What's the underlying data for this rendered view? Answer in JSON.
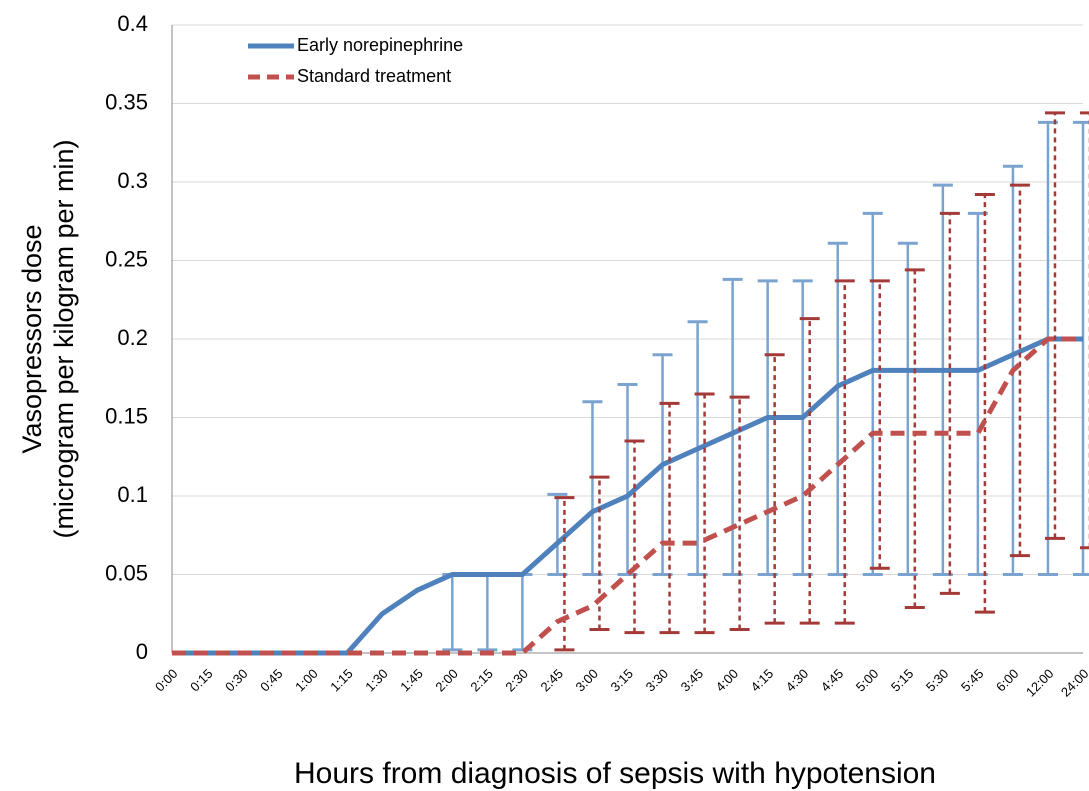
{
  "chart_data": {
    "type": "line",
    "y_label": [
      "Vasopressors dose",
      "(microgram per kilogram per min)"
    ],
    "x_label": "Hours from diagnosis of sepsis with hypotension",
    "categories": [
      "0:00",
      "0:15",
      "0:30",
      "0:45",
      "1:00",
      "1:15",
      "1:30",
      "1:45",
      "2:00",
      "2:15",
      "2:30",
      "2:45",
      "3:00",
      "3:15",
      "3:30",
      "3:45",
      "4:00",
      "4:15",
      "4:30",
      "4:45",
      "5:00",
      "5:15",
      "5:30",
      "5:45",
      "6:00",
      "12:00",
      "24:00"
    ],
    "ylim": [
      0,
      0.4
    ],
    "yticks": [
      0,
      0.05,
      0.1,
      0.15,
      0.2,
      0.25,
      0.3,
      0.35,
      0.4
    ],
    "grid": true,
    "legend": "top-left",
    "series": [
      {
        "name": "Early norepinephrine",
        "color": "#4f81bd",
        "error_color": "#7ba3d0",
        "dash": false,
        "values": [
          0,
          0,
          0,
          0,
          0,
          0,
          0.025,
          0.04,
          0.05,
          0.05,
          0.05,
          0.07,
          0.09,
          0.1,
          0.12,
          0.13,
          0.14,
          0.15,
          0.15,
          0.17,
          0.18,
          0.18,
          0.18,
          0.18,
          0.19,
          0.2,
          0.2
        ],
        "lower": [
          null,
          null,
          null,
          null,
          null,
          null,
          null,
          null,
          0.002,
          0.002,
          0.002,
          0.05,
          0.05,
          0.05,
          0.05,
          0.05,
          0.05,
          0.05,
          0.05,
          0.05,
          0.05,
          0.05,
          0.05,
          0.05,
          0.05,
          0.05,
          0.05
        ],
        "upper": [
          null,
          null,
          null,
          null,
          null,
          null,
          null,
          null,
          0.05,
          0.05,
          0.05,
          0.101,
          0.16,
          0.171,
          0.19,
          0.211,
          0.238,
          0.237,
          0.237,
          0.261,
          0.28,
          0.261,
          0.298,
          0.28,
          0.31,
          0.338,
          0.338
        ]
      },
      {
        "name": "Standard treatment",
        "color": "#c0504d",
        "error_color": "#a33a37",
        "dash": true,
        "values": [
          0,
          0,
          0,
          0,
          0,
          0,
          0,
          0,
          0,
          0,
          0,
          0.02,
          0.03,
          0.05,
          0.07,
          0.07,
          0.08,
          0.09,
          0.1,
          0.12,
          0.14,
          0.14,
          0.14,
          0.14,
          0.18,
          0.2,
          0.2
        ],
        "lower": [
          null,
          null,
          null,
          null,
          null,
          null,
          null,
          null,
          null,
          null,
          null,
          0.002,
          0.015,
          0.013,
          0.013,
          0.013,
          0.015,
          0.019,
          0.019,
          0.019,
          0.054,
          0.029,
          0.038,
          0.026,
          0.062,
          0.073,
          0.067
        ],
        "upper": [
          null,
          null,
          null,
          null,
          null,
          null,
          null,
          null,
          null,
          null,
          null,
          0.099,
          0.112,
          0.135,
          0.159,
          0.165,
          0.163,
          0.19,
          0.213,
          0.237,
          0.237,
          0.244,
          0.28,
          0.292,
          0.298,
          0.344,
          0.344
        ]
      }
    ]
  }
}
